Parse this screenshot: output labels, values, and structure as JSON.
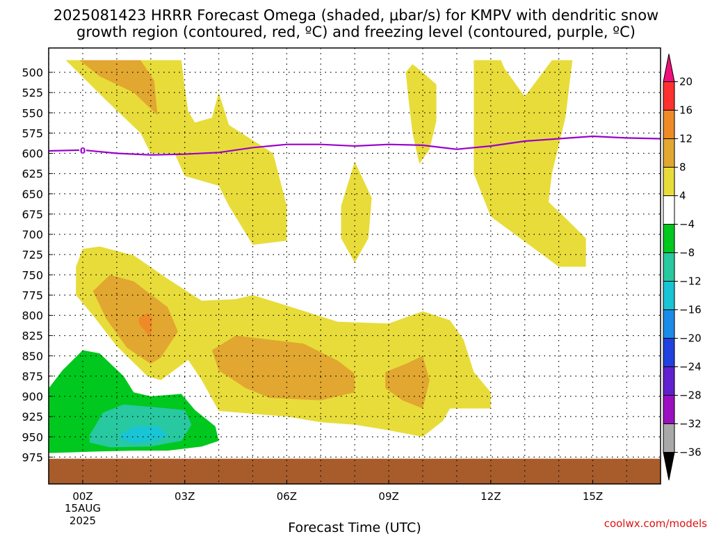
{
  "title_line1": "2025081423 HRRR Forecast Omega (shaded, μbar/s) for KMPV with dendritic snow",
  "title_line2": "growth region (contoured, red, ºC) and freezing level (contoured, purple, ºC)",
  "xlabel": "Forecast Time (UTC)",
  "credit": "coolwx.com/models",
  "date_label": [
    "15AUG",
    "2025"
  ],
  "freezing_label": "0",
  "colors": {
    "yellow": "#e8dc3a",
    "light_orange": "#e2a730",
    "orange": "#ee8a28",
    "green": "#00c81e",
    "teal": "#28c8a0",
    "cyan": "#19c4d4",
    "ground": "#a85c2c",
    "freezing": "#9900cc"
  },
  "chart_data": {
    "type": "heatmap",
    "x_unit": "forecast hour",
    "y_unit": "hPa",
    "xlim": [
      -1,
      17
    ],
    "ylim": [
      485,
      985
    ],
    "x_ticks": [
      {
        "x": 0,
        "label": "00Z"
      },
      {
        "x": 3,
        "label": "03Z"
      },
      {
        "x": 6,
        "label": "06Z"
      },
      {
        "x": 9,
        "label": "09Z"
      },
      {
        "x": 12,
        "label": "12Z"
      },
      {
        "x": 15,
        "label": "15Z"
      }
    ],
    "y_ticks": [
      500,
      525,
      550,
      575,
      600,
      625,
      650,
      675,
      700,
      725,
      750,
      775,
      800,
      825,
      850,
      875,
      900,
      925,
      950,
      975
    ],
    "colorbar": {
      "labels": [
        "20",
        "16",
        "12",
        "8",
        "4",
        "−4",
        "−8",
        "−12",
        "−16",
        "−20",
        "−24",
        "−28",
        "−32",
        "−36"
      ],
      "colors": [
        "#ff3030",
        "#ee8a28",
        "#e2a730",
        "#e8dc3a",
        "#ffffff",
        "#00c81e",
        "#28c8a0",
        "#19c4d4",
        "#1a8ce8",
        "#2040e0",
        "#6020d0",
        "#9a10c0",
        "#a8a8a8"
      ],
      "top_cap": "#f0107c",
      "bottom_cap": "#000000"
    },
    "omega_regions": [
      {
        "level": "4 to 8",
        "color": "yellow",
        "points": [
          [
            -0.5,
            485
          ],
          [
            2.9,
            485
          ],
          [
            3.0,
            518
          ],
          [
            3.1,
            548
          ],
          [
            3.3,
            562
          ],
          [
            3.8,
            556
          ],
          [
            4.0,
            525
          ],
          [
            4.3,
            565
          ],
          [
            5.6,
            600
          ],
          [
            6.0,
            665
          ],
          [
            6.0,
            708
          ],
          [
            5.0,
            713
          ],
          [
            4.3,
            665
          ],
          [
            4.0,
            640
          ],
          [
            3.0,
            628
          ],
          [
            2.7,
            600
          ],
          [
            2.0,
            600
          ],
          [
            1.7,
            575
          ],
          [
            0.7,
            535
          ],
          [
            -0.5,
            485
          ]
        ]
      },
      {
        "level": "4 to 8",
        "color": "yellow",
        "points": [
          [
            9.5,
            500
          ],
          [
            9.7,
            490
          ],
          [
            10.0,
            500
          ],
          [
            10.4,
            515
          ],
          [
            10.4,
            560
          ],
          [
            10.2,
            595
          ],
          [
            9.9,
            613
          ],
          [
            9.7,
            575
          ],
          [
            9.6,
            540
          ],
          [
            9.5,
            500
          ]
        ]
      },
      {
        "level": "4 to 8",
        "color": "yellow",
        "points": [
          [
            8.0,
            610
          ],
          [
            8.5,
            655
          ],
          [
            8.4,
            705
          ],
          [
            8.0,
            735
          ],
          [
            7.6,
            705
          ],
          [
            7.6,
            665
          ],
          [
            8.0,
            610
          ]
        ]
      },
      {
        "level": "4 to 8",
        "color": "yellow",
        "points": [
          [
            11.5,
            485
          ],
          [
            12.3,
            485
          ],
          [
            12.4,
            495
          ],
          [
            13.0,
            530
          ],
          [
            13.8,
            485
          ],
          [
            14.4,
            485
          ],
          [
            14.2,
            555
          ],
          [
            13.8,
            625
          ],
          [
            13.7,
            660
          ],
          [
            14.2,
            680
          ],
          [
            14.8,
            705
          ],
          [
            14.8,
            740
          ],
          [
            14.0,
            740
          ],
          [
            12.0,
            678
          ],
          [
            11.5,
            625
          ],
          [
            11.5,
            580
          ],
          [
            11.5,
            485
          ]
        ]
      },
      {
        "level": "4 to 8",
        "color": "yellow",
        "points": [
          [
            -0.2,
            775
          ],
          [
            -0.2,
            740
          ],
          [
            0.0,
            718
          ],
          [
            0.5,
            715
          ],
          [
            1.5,
            726
          ],
          [
            2.5,
            755
          ],
          [
            3.5,
            782
          ],
          [
            4.5,
            780
          ],
          [
            5.0,
            775
          ],
          [
            6.0,
            788
          ],
          [
            7.5,
            808
          ],
          [
            9.0,
            810
          ],
          [
            10.0,
            795
          ],
          [
            10.8,
            806
          ],
          [
            11.2,
            830
          ],
          [
            11.5,
            870
          ],
          [
            12.0,
            895
          ],
          [
            12.0,
            915
          ],
          [
            10.8,
            915
          ],
          [
            10.6,
            930
          ],
          [
            10.0,
            950
          ],
          [
            9.0,
            942
          ],
          [
            8.0,
            935
          ],
          [
            7.0,
            932
          ],
          [
            6.0,
            925
          ],
          [
            4.0,
            918
          ],
          [
            3.5,
            880
          ],
          [
            3.1,
            855
          ],
          [
            2.3,
            880
          ],
          [
            1.9,
            875
          ],
          [
            1.0,
            838
          ],
          [
            0.3,
            800
          ],
          [
            -0.2,
            775
          ]
        ]
      },
      {
        "level": "8 to 12",
        "color": "light_orange",
        "points": [
          [
            -0.1,
            485
          ],
          [
            1.7,
            485
          ],
          [
            2.1,
            510
          ],
          [
            2.2,
            553
          ],
          [
            1.5,
            525
          ],
          [
            0.5,
            505
          ],
          [
            -0.1,
            485
          ]
        ]
      },
      {
        "level": "8 to 12",
        "color": "light_orange",
        "points": [
          [
            0.3,
            770
          ],
          [
            0.8,
            750
          ],
          [
            1.5,
            758
          ],
          [
            2.5,
            790
          ],
          [
            2.8,
            820
          ],
          [
            2.3,
            852
          ],
          [
            2.0,
            860
          ],
          [
            1.3,
            840
          ],
          [
            0.7,
            805
          ],
          [
            0.3,
            770
          ]
        ]
      },
      {
        "level": "8 to 12",
        "color": "light_orange",
        "points": [
          [
            3.8,
            843
          ],
          [
            4.5,
            825
          ],
          [
            6.5,
            835
          ],
          [
            7.5,
            856
          ],
          [
            8.0,
            872
          ],
          [
            8.0,
            895
          ],
          [
            7.0,
            905
          ],
          [
            5.5,
            902
          ],
          [
            4.8,
            890
          ],
          [
            4.0,
            868
          ],
          [
            3.8,
            843
          ]
        ]
      },
      {
        "level": "8 to 12",
        "color": "light_orange",
        "points": [
          [
            8.9,
            870
          ],
          [
            9.5,
            860
          ],
          [
            10.0,
            850
          ],
          [
            10.2,
            880
          ],
          [
            10.0,
            915
          ],
          [
            9.4,
            905
          ],
          [
            8.9,
            890
          ],
          [
            8.9,
            870
          ]
        ]
      },
      {
        "level": "12 to 16",
        "color": "orange",
        "points": [
          [
            1.65,
            803
          ],
          [
            1.9,
            797
          ],
          [
            2.05,
            803
          ],
          [
            2.0,
            828
          ],
          [
            1.85,
            820
          ],
          [
            1.65,
            810
          ],
          [
            1.65,
            803
          ]
        ]
      },
      {
        "level": "-8 to -4",
        "color": "green",
        "points": [
          [
            -1.0,
            890
          ],
          [
            -0.6,
            868
          ],
          [
            0.0,
            843
          ],
          [
            0.5,
            847
          ],
          [
            1.2,
            875
          ],
          [
            1.5,
            895
          ],
          [
            2.0,
            900
          ],
          [
            2.9,
            897
          ],
          [
            3.3,
            917
          ],
          [
            3.9,
            937
          ],
          [
            4.0,
            955
          ],
          [
            3.5,
            962
          ],
          [
            2.5,
            967
          ],
          [
            1.5,
            967
          ],
          [
            0.5,
            968
          ],
          [
            -1.0,
            970
          ],
          [
            -1.0,
            890
          ]
        ]
      },
      {
        "level": "-12 to -8",
        "color": "teal",
        "points": [
          [
            0.2,
            948
          ],
          [
            0.6,
            920
          ],
          [
            1.2,
            910
          ],
          [
            2.0,
            913
          ],
          [
            3.0,
            917
          ],
          [
            3.2,
            935
          ],
          [
            2.9,
            955
          ],
          [
            2.0,
            962
          ],
          [
            0.8,
            963
          ],
          [
            0.2,
            957
          ],
          [
            0.2,
            948
          ]
        ]
      },
      {
        "level": "-16 to -12",
        "color": "cyan",
        "points": [
          [
            1.1,
            948
          ],
          [
            1.5,
            937
          ],
          [
            2.2,
            937
          ],
          [
            2.5,
            947
          ],
          [
            2.2,
            955
          ],
          [
            1.5,
            958
          ],
          [
            1.1,
            953
          ],
          [
            1.1,
            948
          ]
        ]
      }
    ],
    "ground": {
      "top_hPa": 977,
      "label": "ground"
    },
    "freezing_level": {
      "x": [
        -1,
        0,
        1,
        2,
        3,
        4,
        5,
        6,
        7,
        8,
        9,
        10,
        11,
        12,
        13,
        14,
        15,
        16,
        17
      ],
      "y": [
        597,
        596,
        600,
        602,
        601,
        599,
        593,
        589,
        589,
        591,
        589,
        590,
        595,
        591,
        585,
        582,
        579,
        581,
        582
      ]
    }
  }
}
